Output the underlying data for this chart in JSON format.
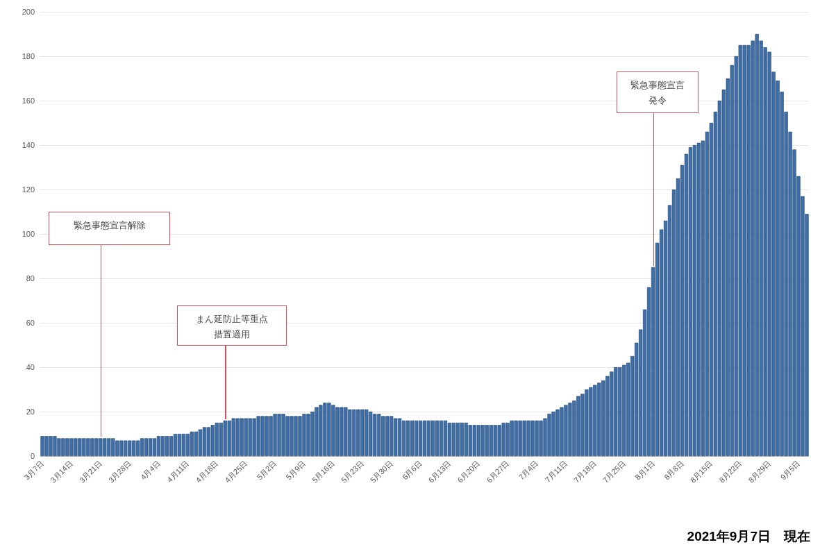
{
  "chart_data": {
    "type": "bar",
    "categories": [
      "3月7日",
      null,
      null,
      null,
      null,
      null,
      null,
      "3月14日",
      null,
      null,
      null,
      null,
      null,
      null,
      "3月21日",
      null,
      null,
      null,
      null,
      null,
      null,
      "3月28日",
      null,
      null,
      null,
      null,
      null,
      null,
      "4月4日",
      null,
      null,
      null,
      null,
      null,
      null,
      "4月11日",
      null,
      null,
      null,
      null,
      null,
      null,
      "4月18日",
      null,
      null,
      null,
      null,
      null,
      null,
      "4月25日",
      null,
      null,
      null,
      null,
      null,
      null,
      "5月2日",
      null,
      null,
      null,
      null,
      null,
      null,
      "5月9日",
      null,
      null,
      null,
      null,
      null,
      null,
      "5月16日",
      null,
      null,
      null,
      null,
      null,
      null,
      "5月23日",
      null,
      null,
      null,
      null,
      null,
      null,
      "5月30日",
      null,
      null,
      null,
      null,
      null,
      null,
      "6月6日",
      null,
      null,
      null,
      null,
      null,
      null,
      "6月13日",
      null,
      null,
      null,
      null,
      null,
      null,
      "6月20日",
      null,
      null,
      null,
      null,
      null,
      null,
      "6月27日",
      null,
      null,
      null,
      null,
      null,
      null,
      "7月4日",
      null,
      null,
      null,
      null,
      null,
      null,
      "7月11日",
      null,
      null,
      null,
      null,
      null,
      null,
      "7月18日",
      null,
      null,
      null,
      null,
      null,
      null,
      "7月25日",
      null,
      null,
      null,
      null,
      null,
      null,
      "8月1日",
      null,
      null,
      null,
      null,
      null,
      null,
      "8月8日",
      null,
      null,
      null,
      null,
      null,
      null,
      "8月15日",
      null,
      null,
      null,
      null,
      null,
      null,
      "8月22日",
      null,
      null,
      null,
      null,
      null,
      null,
      "8月29日",
      null,
      null,
      null,
      null,
      null,
      null,
      "9月5日",
      null,
      null
    ],
    "values": [
      9,
      9,
      9,
      9,
      8,
      8,
      8,
      8,
      8,
      8,
      8,
      8,
      8,
      8,
      8,
      8,
      8,
      8,
      7,
      7,
      7,
      7,
      7,
      7,
      8,
      8,
      8,
      8,
      9,
      9,
      9,
      9,
      10,
      10,
      10,
      10,
      11,
      11,
      12,
      13,
      13,
      14,
      15,
      15,
      16,
      16,
      17,
      17,
      17,
      17,
      17,
      17,
      18,
      18,
      18,
      18,
      19,
      19,
      19,
      18,
      18,
      18,
      18,
      19,
      19,
      20,
      22,
      23,
      24,
      24,
      23,
      22,
      22,
      22,
      21,
      21,
      21,
      21,
      21,
      20,
      19,
      19,
      18,
      18,
      18,
      17,
      17,
      16,
      16,
      16,
      16,
      16,
      16,
      16,
      16,
      16,
      16,
      16,
      15,
      15,
      15,
      15,
      15,
      14,
      14,
      14,
      14,
      14,
      14,
      14,
      14,
      15,
      15,
      16,
      16,
      16,
      16,
      16,
      16,
      16,
      16,
      17,
      19,
      20,
      21,
      22,
      23,
      24,
      25,
      27,
      28,
      30,
      31,
      32,
      33,
      34,
      36,
      38,
      40,
      40,
      41,
      42,
      45,
      51,
      57,
      66,
      76,
      85,
      96,
      102,
      106,
      113,
      120,
      125,
      131,
      136,
      139,
      140,
      141,
      142,
      146,
      150,
      155,
      160,
      165,
      170,
      176,
      180,
      185,
      185,
      185,
      187,
      190,
      187,
      184,
      182,
      173,
      169,
      164,
      155,
      146,
      138,
      126,
      117,
      109
    ],
    "color": "#3f6fa9",
    "ylim": [
      0,
      200
    ],
    "yticks": [
      0,
      20,
      40,
      60,
      80,
      100,
      120,
      140,
      160,
      180,
      200
    ],
    "grid": "y",
    "annotations": [
      "緊急事態宣言解除",
      "まん延防止等重点措置適用",
      "緊急事態宣言発令",
      "2021年9月7日　現在"
    ]
  }
}
